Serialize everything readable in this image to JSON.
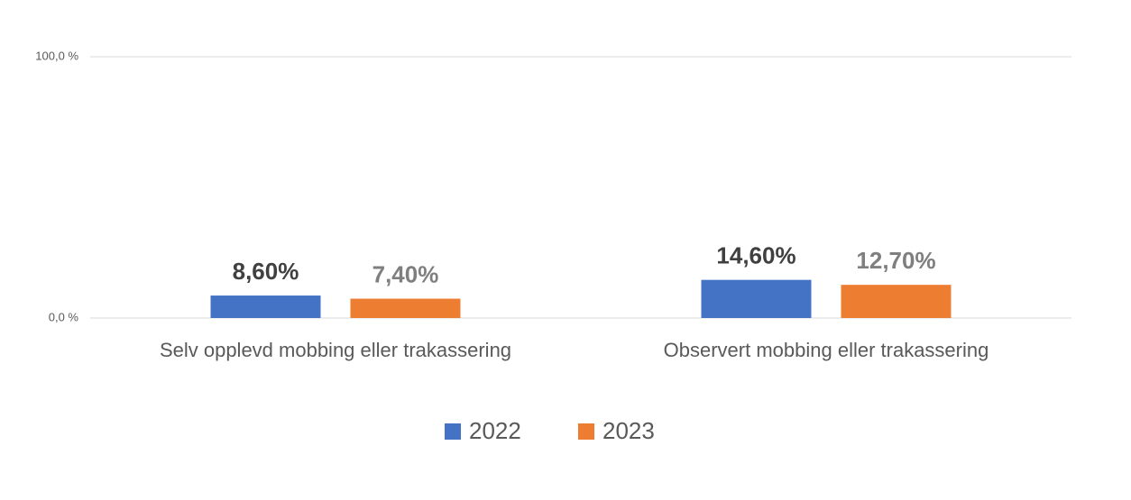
{
  "chart_data": {
    "type": "bar",
    "categories": [
      "Selv opplevd mobbing eller trakassering",
      "Observert mobbing eller trakassering"
    ],
    "series": [
      {
        "name": "2022",
        "color": "#4472c4",
        "label_color": "#404040",
        "values": [
          8.6,
          14.6
        ],
        "value_labels": [
          "8,60%",
          "14,60%"
        ]
      },
      {
        "name": "2023",
        "color": "#ed7d31",
        "label_color": "#7f7f7f",
        "values": [
          7.4,
          12.7
        ],
        "value_labels": [
          "7,40%",
          "12,70%"
        ]
      }
    ],
    "ylim": [
      0,
      100
    ],
    "yticks": [
      {
        "value": 0,
        "label": "0,0 %"
      },
      {
        "value": 100,
        "label": "100,0 %"
      }
    ],
    "grid": true,
    "legend": "bottom"
  }
}
